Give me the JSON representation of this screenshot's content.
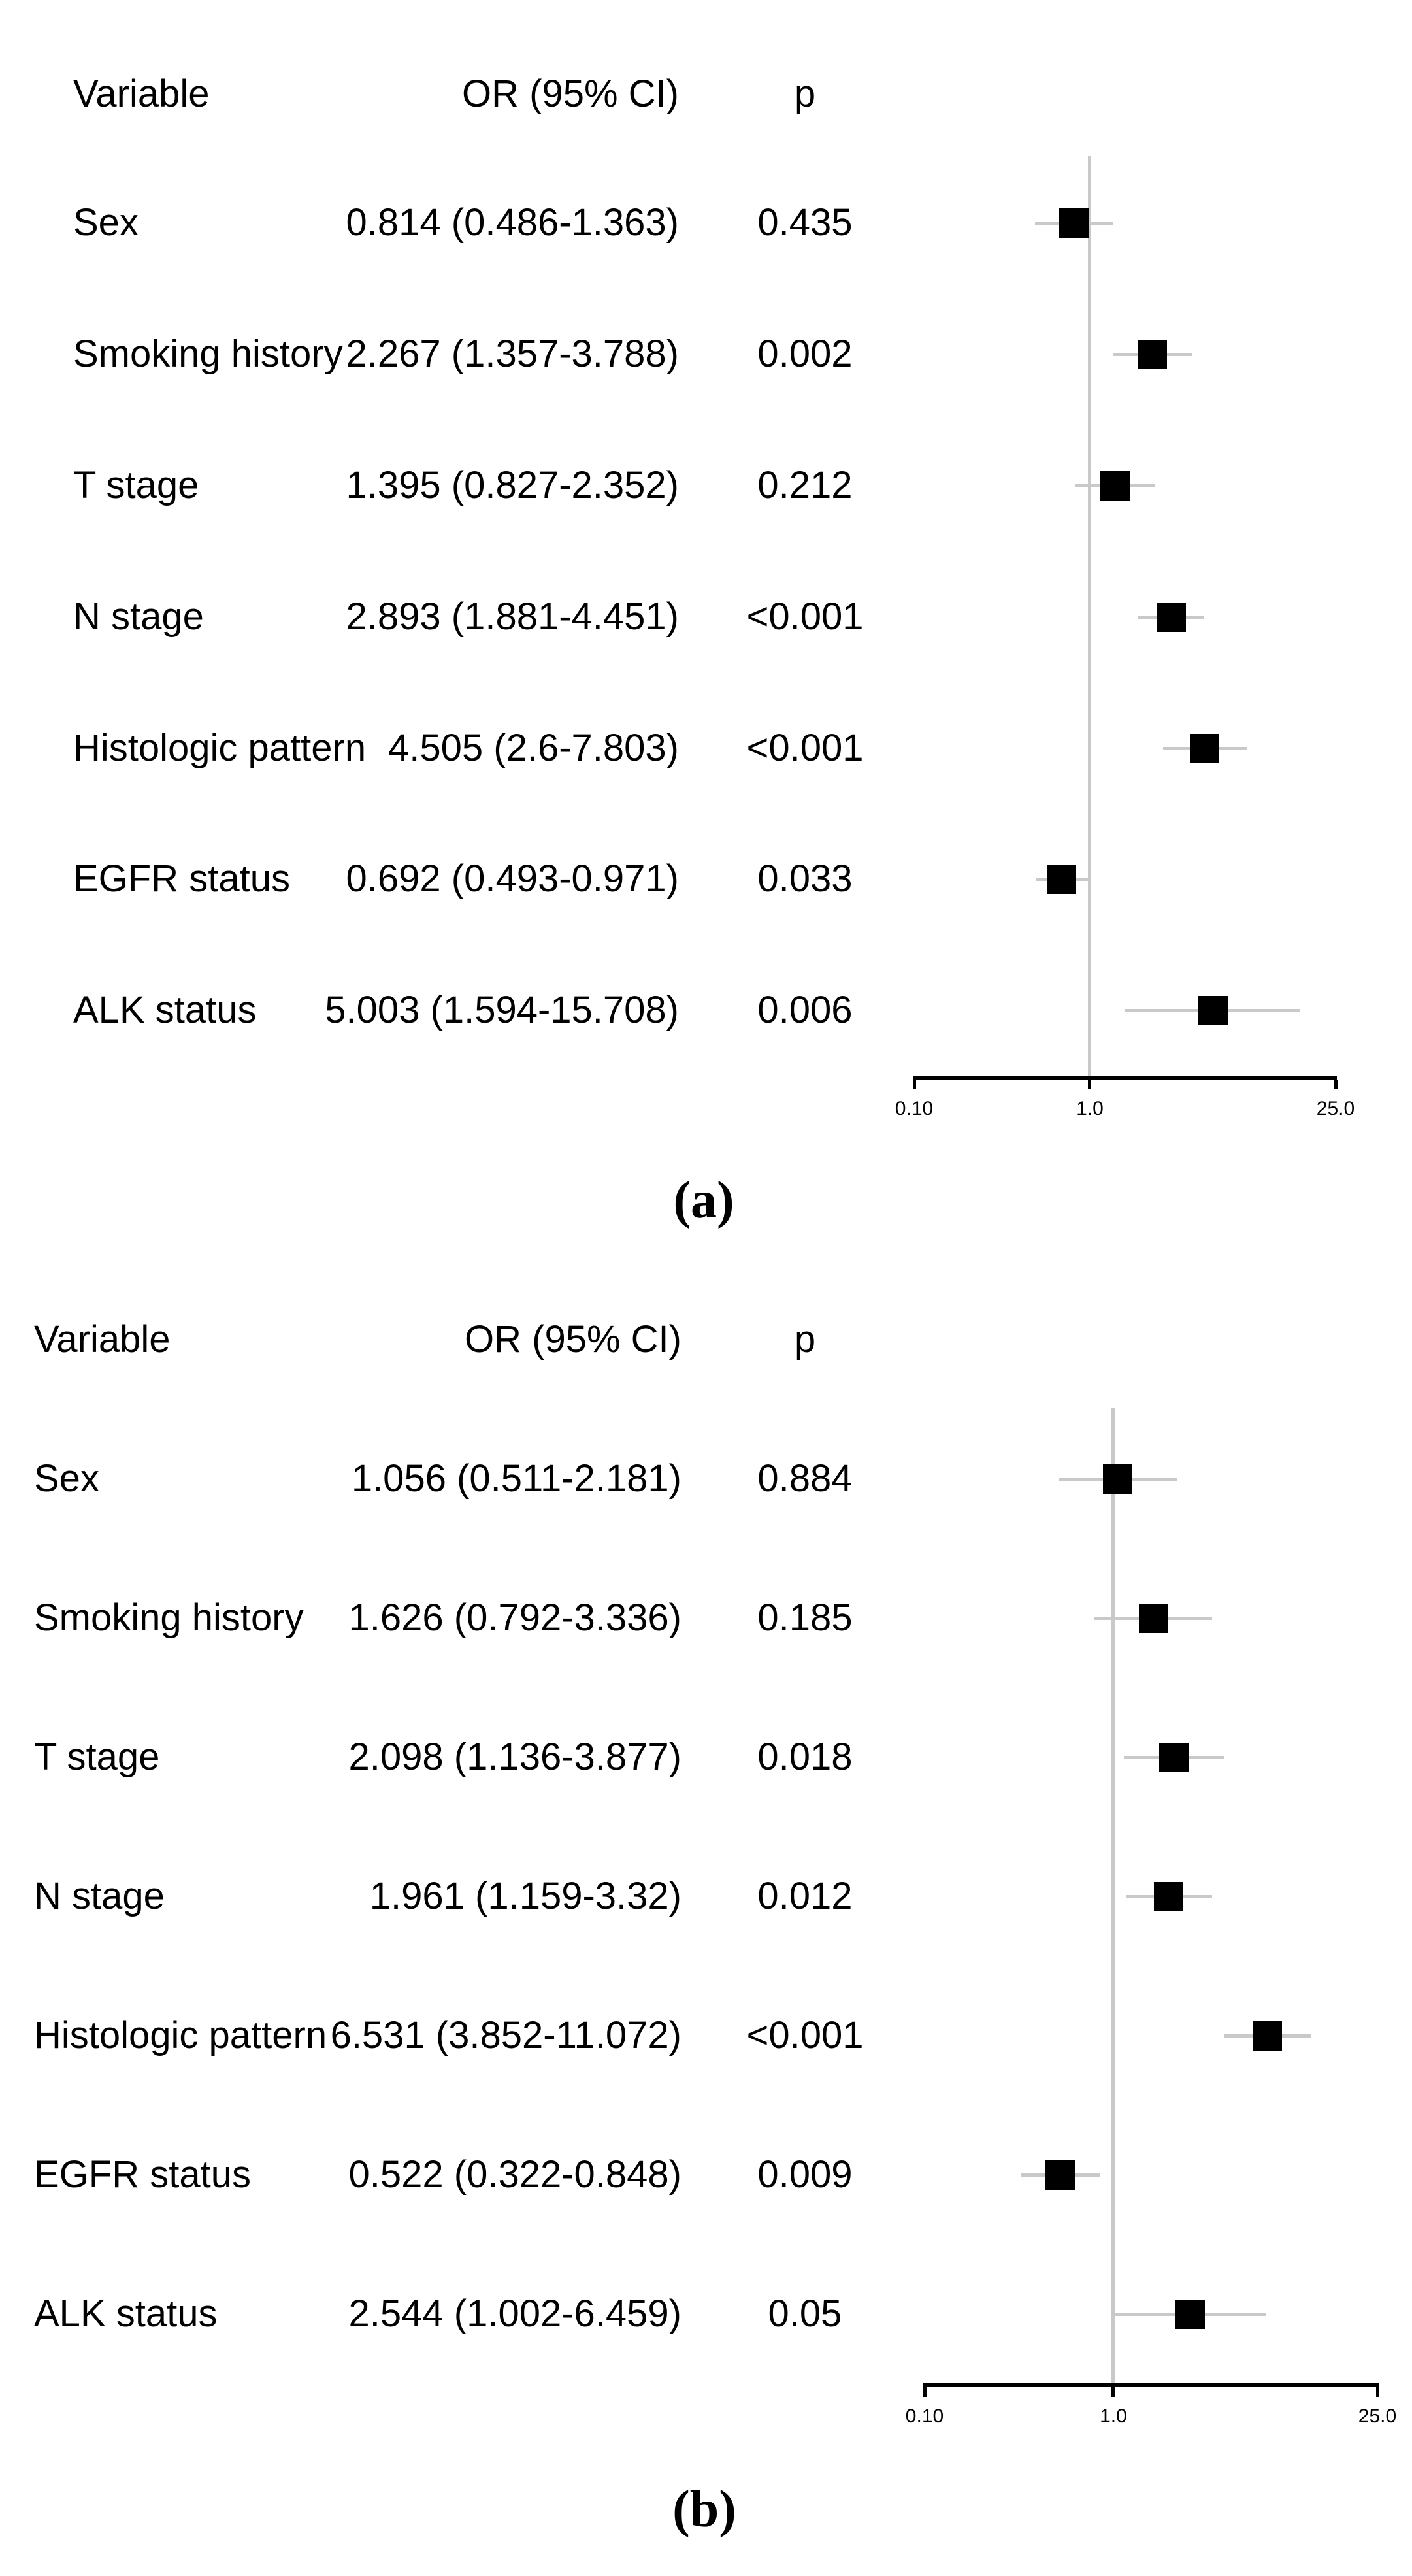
{
  "figure": {
    "background": "#ffffff",
    "colors": {
      "marker": "#000000",
      "ci_line": "#c9c9c9",
      "reference_line": "#c9c9c9",
      "axis": "#000000",
      "text": "#000000"
    }
  },
  "chart_data": [
    {
      "type": "scatter",
      "subtype": "forest-plot",
      "panel_label": "(a)",
      "columns": {
        "variable": "Variable",
        "or_ci": "OR (95% CI)",
        "p": "p"
      },
      "xscale": "log",
      "xlim": [
        0.1,
        25.0
      ],
      "axis": {
        "ticks": [
          "0.10",
          "1.0",
          "25.0"
        ],
        "tick_values": [
          0.1,
          1.0,
          25.0
        ],
        "reference_line": 1.0
      },
      "rows": [
        {
          "variable": "Sex",
          "or": 0.814,
          "ci_low": 0.486,
          "ci_high": 1.363,
          "or_ci_text": "0.814 (0.486-1.363)",
          "p": "0.435"
        },
        {
          "variable": "Smoking history",
          "or": 2.267,
          "ci_low": 1.357,
          "ci_high": 3.788,
          "or_ci_text": "2.267 (1.357-3.788)",
          "p": "0.002"
        },
        {
          "variable": "T stage",
          "or": 1.395,
          "ci_low": 0.827,
          "ci_high": 2.352,
          "or_ci_text": "1.395 (0.827-2.352)",
          "p": "0.212"
        },
        {
          "variable": "N stage",
          "or": 2.893,
          "ci_low": 1.881,
          "ci_high": 4.451,
          "or_ci_text": "2.893 (1.881-4.451)",
          "p": "<0.001"
        },
        {
          "variable": "Histologic pattern",
          "or": 4.505,
          "ci_low": 2.6,
          "ci_high": 7.803,
          "or_ci_text": "4.505 (2.6-7.803)",
          "p": "<0.001"
        },
        {
          "variable": "EGFR status",
          "or": 0.692,
          "ci_low": 0.493,
          "ci_high": 0.971,
          "or_ci_text": "0.692 (0.493-0.971)",
          "p": "0.033"
        },
        {
          "variable": "ALK status",
          "or": 5.003,
          "ci_low": 1.594,
          "ci_high": 15.708,
          "or_ci_text": "5.003 (1.594-15.708)",
          "p": "0.006"
        }
      ]
    },
    {
      "type": "scatter",
      "subtype": "forest-plot",
      "panel_label": "(b)",
      "columns": {
        "variable": "Variable",
        "or_ci": "OR (95% CI)",
        "p": "p"
      },
      "xscale": "log",
      "xlim": [
        0.1,
        25.0
      ],
      "axis": {
        "ticks": [
          "0.10",
          "1.0",
          "25.0"
        ],
        "tick_values": [
          0.1,
          1.0,
          25.0
        ],
        "reference_line": 1.0
      },
      "rows": [
        {
          "variable": "Sex",
          "or": 1.056,
          "ci_low": 0.511,
          "ci_high": 2.181,
          "or_ci_text": "1.056 (0.511-2.181)",
          "p": "0.884"
        },
        {
          "variable": "Smoking history",
          "or": 1.626,
          "ci_low": 0.792,
          "ci_high": 3.336,
          "or_ci_text": "1.626 (0.792-3.336)",
          "p": "0.185"
        },
        {
          "variable": "T stage",
          "or": 2.098,
          "ci_low": 1.136,
          "ci_high": 3.877,
          "or_ci_text": "2.098 (1.136-3.877)",
          "p": "0.018"
        },
        {
          "variable": "N stage",
          "or": 1.961,
          "ci_low": 1.159,
          "ci_high": 3.32,
          "or_ci_text": "1.961 (1.159-3.32)",
          "p": "0.012"
        },
        {
          "variable": "Histologic pattern",
          "or": 6.531,
          "ci_low": 3.852,
          "ci_high": 11.072,
          "or_ci_text": "6.531 (3.852-11.072)",
          "p": "<0.001"
        },
        {
          "variable": "EGFR status",
          "or": 0.522,
          "ci_low": 0.322,
          "ci_high": 0.848,
          "or_ci_text": "0.522 (0.322-0.848)",
          "p": "0.009"
        },
        {
          "variable": "ALK status",
          "or": 2.544,
          "ci_low": 1.002,
          "ci_high": 6.459,
          "or_ci_text": "2.544 (1.002-6.459)",
          "p": "0.05"
        }
      ]
    }
  ]
}
